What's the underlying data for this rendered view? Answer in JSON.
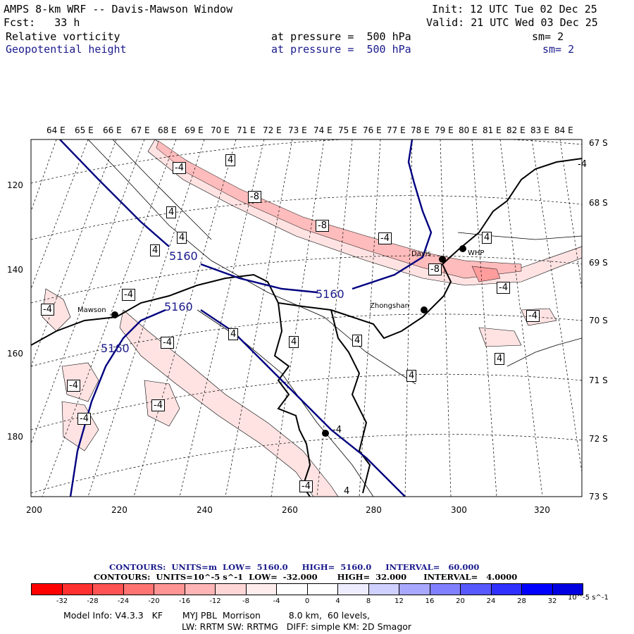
{
  "header": {
    "title": "AMPS 8-km WRF -- Davis-Mawson Window",
    "init": "Init: 12 UTC Tue 02 Dec 25",
    "fcst": "Fcst:   33 h",
    "valid": "Valid: 21 UTC Wed 03 Dec 25",
    "field1": "Relative vorticity",
    "field1_level": "at pressure =  500 hPa",
    "field1_sm": "sm= 2",
    "field2": "Geopotential height",
    "field2_level": "at pressure =  500 hPa",
    "field2_sm": "sm= 2"
  },
  "colors": {
    "title_blue": "#1a1a8c"
  },
  "axes": {
    "lon_labels": [
      "64 E",
      "65 E",
      "66 E",
      "67 E",
      "68 E",
      "69 E",
      "70 E",
      "71 E",
      "72 E",
      "73 E",
      "74 E",
      "75 E",
      "76 E",
      "77 E",
      "78 E",
      "79 E",
      "80 E",
      "81 E",
      "82 E",
      "83 E",
      "84 E"
    ],
    "lat_labels": [
      "67 S",
      "68 S",
      "69 S",
      "70 S",
      "71 S",
      "72 S",
      "73 S"
    ],
    "x_ticks": [
      "200",
      "220",
      "240",
      "260",
      "280",
      "300",
      "320"
    ],
    "y_ticks": [
      "120",
      "140",
      "160",
      "180"
    ]
  },
  "stations": [
    "Mawson",
    "Davis",
    "WHP",
    "Zhongshan"
  ],
  "contour_labels": {
    "height": [
      "5160",
      "5160",
      "5160",
      "5160"
    ],
    "vort": [
      "-4",
      "4",
      "4",
      "-8",
      "-8",
      "-4",
      "4",
      "4",
      "-4",
      "-8",
      "4",
      "-4",
      "-4",
      "-4",
      "-4",
      "4",
      "4",
      "-4",
      "4",
      "4",
      "-4",
      "4",
      "-4",
      "-4",
      "-4",
      "-4",
      "4"
    ]
  },
  "info": {
    "line1": "CONTOURS:  UNITS=m  LOW=  5160.0     HIGH=  5160.0     INTERVAL=   60.000",
    "line2": "CONTOURS:  UNITS=10^-5 s^-1  LOW=  -32.000       HIGH=  32.000      INTERVAL=   4.0000"
  },
  "colorbar": {
    "labels": [
      "-32",
      "-28",
      "-24",
      "-20",
      "-16",
      "-12",
      "-8",
      "-4",
      "0",
      "4",
      "8",
      "12",
      "16",
      "20",
      "24",
      "28",
      "32"
    ],
    "units": "10^-5 s^-1",
    "colors": [
      "#ff0000",
      "#ff3030",
      "#ff5252",
      "#ff7373",
      "#ff9494",
      "#ffb5b5",
      "#ffd6d6",
      "#ffeded",
      "#ffffff",
      "#ffffff",
      "#ededff",
      "#d0d0ff",
      "#a8a8ff",
      "#8080ff",
      "#5858ff",
      "#3030ff",
      "#0000ff",
      "#0000e0"
    ]
  },
  "model": {
    "line1": "Model Info: V4.3.3   KF       MYJ PBL  Morrison          8.0 km,  60 levels,",
    "line2": "LW: RRTM SW: RRTMG   DIFF: simple KM: 2D Smagor"
  }
}
